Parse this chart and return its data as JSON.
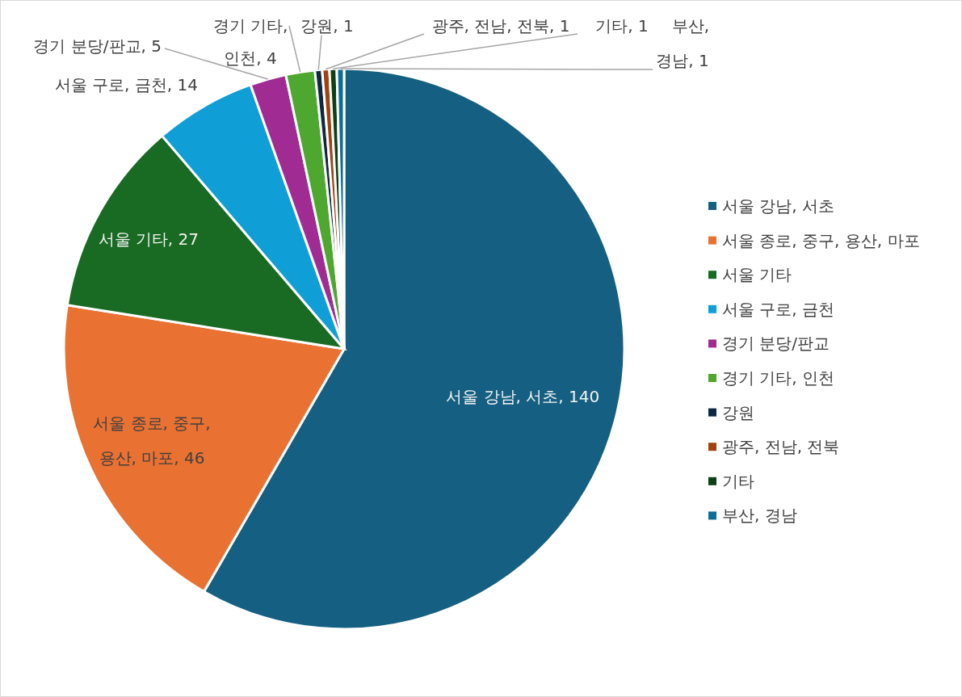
{
  "chart_data": {
    "type": "pie",
    "categories": [
      "서울 강남, 서초",
      "서울 종로, 중구, 용산, 마포",
      "서울 기타",
      "서울 구로, 금천",
      "경기 분당/판교",
      "경기 기타, 인천",
      "강원",
      "광주, 전남, 전북",
      "기타",
      "부산, 경남"
    ],
    "values": [
      140,
      46,
      27,
      14,
      5,
      4,
      1,
      1,
      1,
      1
    ],
    "colors": [
      "#156082",
      "#e97132",
      "#196b24",
      "#0f9ed5",
      "#a02b93",
      "#4ea72e",
      "#0e2841",
      "#a1430e",
      "#0e3f15",
      "#0c6d97"
    ],
    "value_labels": [
      "서울 강남, 서초, 140",
      "서울 종로, 중구,\n용산, 마포, 46",
      "서울 기타, 27",
      "서울 구로, 금천, 14",
      "경기 분당/판교, 5",
      "경기 기타,\n인천, 4",
      "강원, 1",
      "광주, 전남, 전북, 1",
      "기타, 1",
      "부산,\n경남, 1"
    ],
    "legend": "right"
  }
}
